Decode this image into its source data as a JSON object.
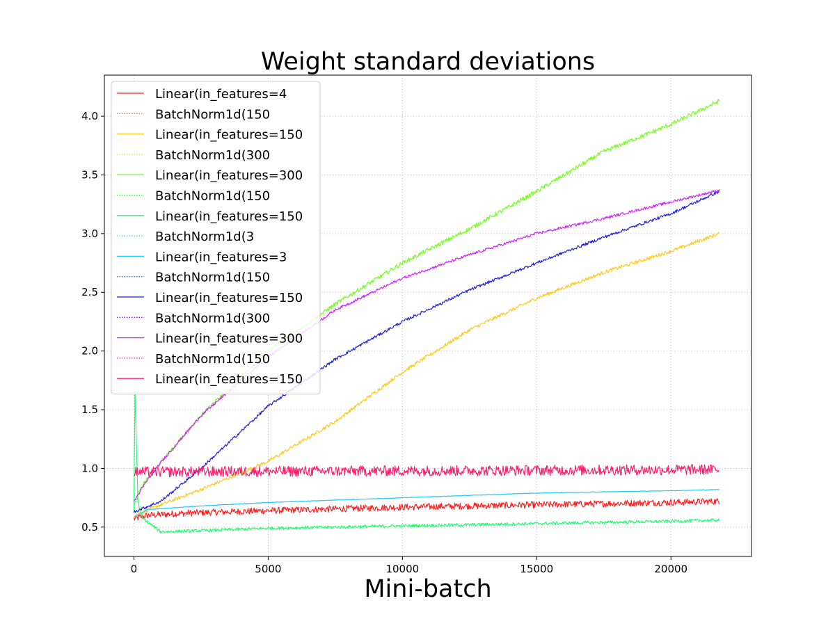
{
  "chart_data": {
    "type": "line",
    "title": "Weight standard deviations",
    "xlabel": "Mini-batch",
    "ylabel": "",
    "xlim": [
      -1100,
      23000
    ],
    "ylim": [
      0.25,
      4.35
    ],
    "x_ticks": [
      0,
      5000,
      10000,
      15000,
      20000
    ],
    "x_tick_labels": [
      "0",
      "5000",
      "10000",
      "15000",
      "20000"
    ],
    "y_ticks": [
      0.5,
      1.0,
      1.5,
      2.0,
      2.5,
      3.0,
      3.5,
      4.0
    ],
    "y_tick_labels": [
      "0.5",
      "1.0",
      "1.5",
      "2.0",
      "2.5",
      "3.0",
      "3.5",
      "4.0"
    ],
    "grid": true,
    "legend_position": "upper-left",
    "x_max": 21800,
    "series": [
      {
        "name": "Linear(in_features=4",
        "color": "#ff1f1f",
        "style": "solid",
        "noise": 0.028,
        "points": [
          [
            0,
            0.57
          ],
          [
            500,
            0.6
          ],
          [
            2000,
            0.62
          ],
          [
            5000,
            0.64
          ],
          [
            10000,
            0.67
          ],
          [
            15000,
            0.69
          ],
          [
            20000,
            0.71
          ],
          [
            21800,
            0.72
          ]
        ]
      },
      {
        "name": "BatchNorm1d(150",
        "color": "#ff7f0e",
        "style": "dotted",
        "noise": 0,
        "points": []
      },
      {
        "name": "Linear(in_features=150",
        "color": "#ffc91f",
        "style": "solid",
        "noise": 0.015,
        "points": [
          [
            0,
            0.6
          ],
          [
            1000,
            0.69
          ],
          [
            2500,
            0.82
          ],
          [
            5000,
            1.06
          ],
          [
            7500,
            1.4
          ],
          [
            10000,
            1.82
          ],
          [
            12500,
            2.18
          ],
          [
            15000,
            2.45
          ],
          [
            17500,
            2.67
          ],
          [
            20000,
            2.85
          ],
          [
            21800,
            3.0
          ]
        ]
      },
      {
        "name": "BatchNorm1d(300",
        "color": "#e0e020",
        "style": "dotted",
        "noise": 0,
        "points": []
      },
      {
        "name": "Linear(in_features=300",
        "color": "#76ff1f",
        "style": "solid",
        "noise": 0.018,
        "points": [
          [
            0,
            0.68
          ],
          [
            250,
            0.84
          ],
          [
            1000,
            1.05
          ],
          [
            2500,
            1.45
          ],
          [
            5000,
            2.0
          ],
          [
            7500,
            2.4
          ],
          [
            10000,
            2.75
          ],
          [
            12500,
            3.04
          ],
          [
            15000,
            3.36
          ],
          [
            17500,
            3.7
          ],
          [
            20000,
            3.93
          ],
          [
            21800,
            4.13
          ]
        ]
      },
      {
        "name": "BatchNorm1d(150",
        "color": "#2ee82e",
        "style": "dotted",
        "noise": 0,
        "points": []
      },
      {
        "name": "Linear(in_features=150",
        "color": "#1fff6f",
        "style": "solid",
        "noise": 0.013,
        "points": [
          [
            0,
            0.62
          ],
          [
            40,
            1.68
          ],
          [
            150,
            0.72
          ],
          [
            300,
            0.58
          ],
          [
            1000,
            0.46
          ],
          [
            2500,
            0.47
          ],
          [
            5000,
            0.49
          ],
          [
            10000,
            0.51
          ],
          [
            15000,
            0.53
          ],
          [
            20000,
            0.55
          ],
          [
            21800,
            0.56
          ]
        ]
      },
      {
        "name": "BatchNorm1d(3",
        "color": "#1fe8e8",
        "style": "dotted",
        "noise": 0,
        "points": []
      },
      {
        "name": "Linear(in_features=3",
        "color": "#1fc8ff",
        "style": "solid",
        "noise": 0.002,
        "points": [
          [
            0,
            0.58
          ],
          [
            500,
            0.65
          ],
          [
            2500,
            0.68
          ],
          [
            5000,
            0.71
          ],
          [
            10000,
            0.75
          ],
          [
            15000,
            0.79
          ],
          [
            20000,
            0.81
          ],
          [
            21800,
            0.82
          ]
        ]
      },
      {
        "name": "BatchNorm1d(150",
        "color": "#1f7fff",
        "style": "dotted",
        "noise": 0,
        "points": []
      },
      {
        "name": "Linear(in_features=150",
        "color": "#1f1fe0",
        "style": "solid",
        "noise": 0.012,
        "points": [
          [
            0,
            0.63
          ],
          [
            1000,
            0.72
          ],
          [
            2500,
            1.0
          ],
          [
            5000,
            1.53
          ],
          [
            7500,
            1.93
          ],
          [
            10000,
            2.25
          ],
          [
            12500,
            2.52
          ],
          [
            15000,
            2.75
          ],
          [
            17500,
            2.97
          ],
          [
            20000,
            3.17
          ],
          [
            21800,
            3.36
          ]
        ]
      },
      {
        "name": "BatchNorm1d(300",
        "color": "#7f1fff",
        "style": "dotted",
        "noise": 0,
        "points": []
      },
      {
        "name": "Linear(in_features=300",
        "color": "#d21fff",
        "style": "solid",
        "noise": 0.011,
        "points": [
          [
            0,
            0.72
          ],
          [
            500,
            0.9
          ],
          [
            1000,
            1.05
          ],
          [
            2500,
            1.45
          ],
          [
            5000,
            1.95
          ],
          [
            7500,
            2.35
          ],
          [
            10000,
            2.62
          ],
          [
            12500,
            2.82
          ],
          [
            15000,
            3.0
          ],
          [
            17500,
            3.13
          ],
          [
            20000,
            3.27
          ],
          [
            21800,
            3.37
          ]
        ]
      },
      {
        "name": "BatchNorm1d(150",
        "color": "#ff1fdf",
        "style": "dotted",
        "noise": 0,
        "points": []
      },
      {
        "name": "Linear(in_features=150",
        "color": "#ff1f6f",
        "style": "solid",
        "noise": 0.045,
        "points": [
          [
            0,
            0.97
          ],
          [
            21800,
            0.99
          ]
        ]
      }
    ]
  }
}
